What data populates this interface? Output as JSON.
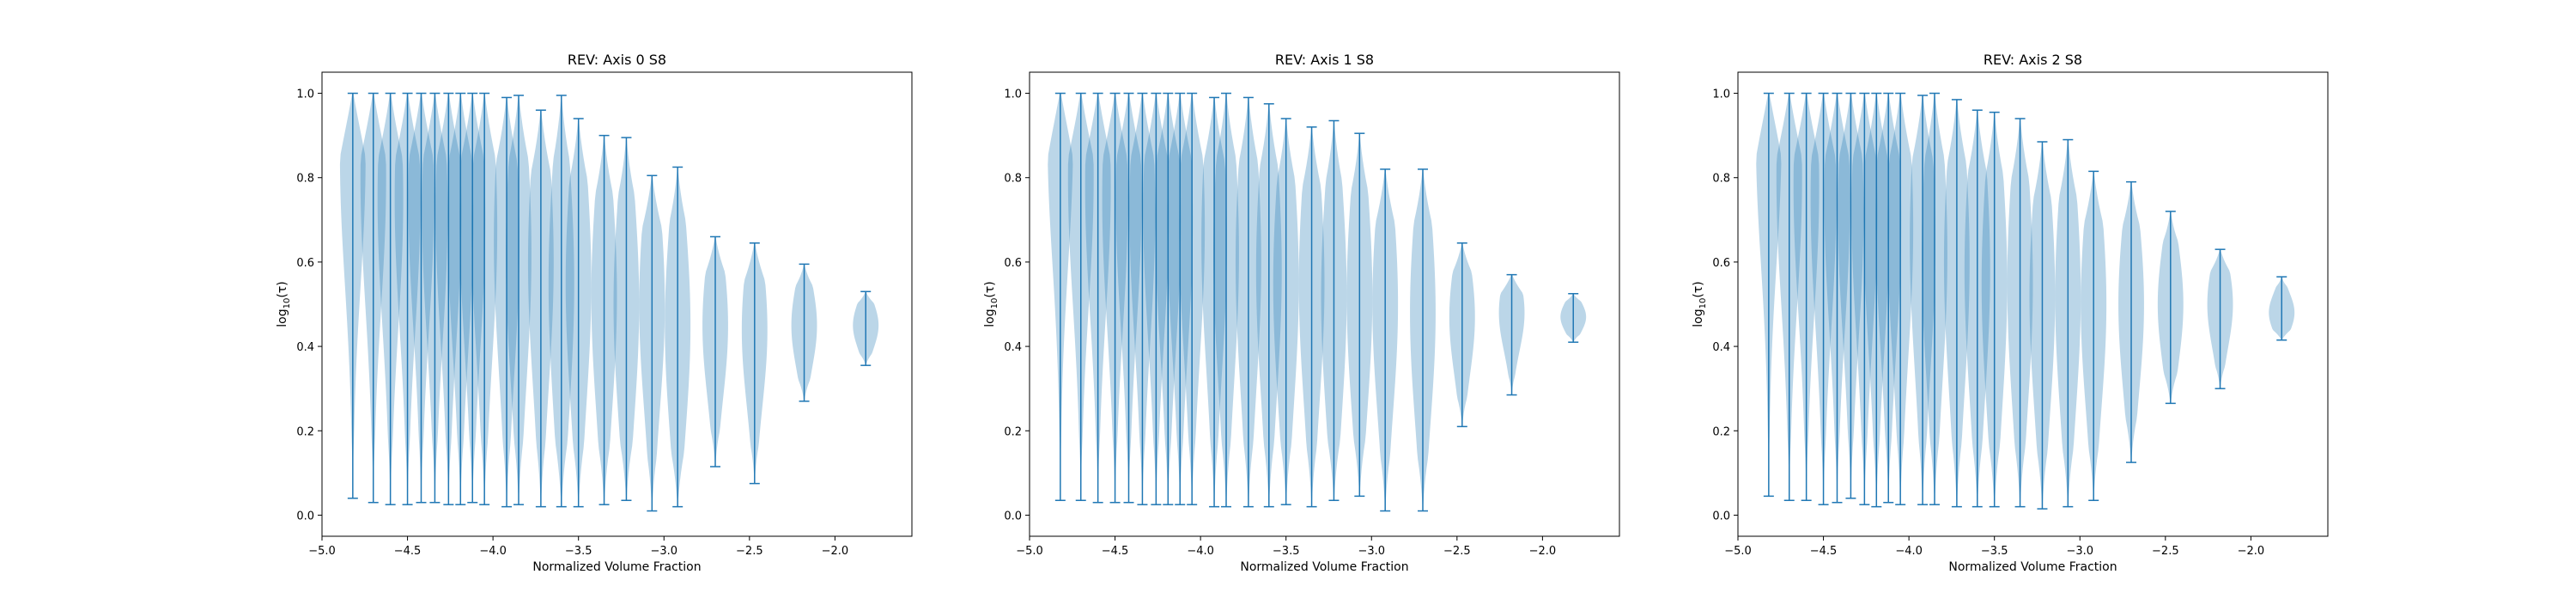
{
  "colors": {
    "violin_fill": "#1f77b4",
    "violin_fill_opacity": 0.3,
    "violin_line": "#1f77b4",
    "axis": "#000000"
  },
  "chart_data": [
    {
      "type": "violin",
      "title": "REV: Axis 0 S8",
      "xlabel": "Normalized Volume Fraction",
      "ylabel": "log10(τ)",
      "ylabel_parts": {
        "base": "log",
        "sub": "10",
        "arg": "(τ)"
      },
      "xlim": [
        -5.0,
        -1.55
      ],
      "ylim": [
        -0.05,
        1.05
      ],
      "xticks": [
        -5.0,
        -4.5,
        -4.0,
        -3.5,
        -3.0,
        -2.5,
        -2.0
      ],
      "xtick_labels": [
        "−5.0",
        "−4.5",
        "−4.0",
        "−3.5",
        "−3.0",
        "−2.5",
        "−2.0"
      ],
      "yticks": [
        0.0,
        0.2,
        0.4,
        0.6,
        0.8,
        1.0
      ],
      "ytick_labels": [
        "0.0",
        "0.2",
        "0.4",
        "0.6",
        "0.8",
        "1.0"
      ],
      "grid": false,
      "violins": [
        {
          "x": -4.82,
          "min": 0.04,
          "max": 1.0,
          "center": 0.85,
          "hw": 0.075
        },
        {
          "x": -4.7,
          "min": 0.03,
          "max": 1.0,
          "center": 0.8,
          "hw": 0.075
        },
        {
          "x": -4.6,
          "min": 0.025,
          "max": 1.0,
          "center": 0.75,
          "hw": 0.075
        },
        {
          "x": -4.5,
          "min": 0.025,
          "max": 1.0,
          "center": 0.75,
          "hw": 0.075
        },
        {
          "x": -4.42,
          "min": 0.03,
          "max": 1.0,
          "center": 0.75,
          "hw": 0.075
        },
        {
          "x": -4.34,
          "min": 0.03,
          "max": 1.0,
          "center": 0.72,
          "hw": 0.075
        },
        {
          "x": -4.26,
          "min": 0.025,
          "max": 1.0,
          "center": 0.72,
          "hw": 0.075
        },
        {
          "x": -4.19,
          "min": 0.025,
          "max": 1.0,
          "center": 0.7,
          "hw": 0.075
        },
        {
          "x": -4.12,
          "min": 0.03,
          "max": 1.0,
          "center": 0.7,
          "hw": 0.075
        },
        {
          "x": -4.05,
          "min": 0.025,
          "max": 1.0,
          "center": 0.68,
          "hw": 0.075
        },
        {
          "x": -3.92,
          "min": 0.02,
          "max": 0.99,
          "center": 0.65,
          "hw": 0.075
        },
        {
          "x": -3.85,
          "min": 0.025,
          "max": 0.995,
          "center": 0.62,
          "hw": 0.075
        },
        {
          "x": -3.72,
          "min": 0.02,
          "max": 0.96,
          "center": 0.6,
          "hw": 0.075
        },
        {
          "x": -3.6,
          "min": 0.02,
          "max": 0.995,
          "center": 0.55,
          "hw": 0.075
        },
        {
          "x": -3.5,
          "min": 0.02,
          "max": 0.94,
          "center": 0.55,
          "hw": 0.075
        },
        {
          "x": -3.35,
          "min": 0.025,
          "max": 0.9,
          "center": 0.52,
          "hw": 0.075
        },
        {
          "x": -3.22,
          "min": 0.035,
          "max": 0.895,
          "center": 0.5,
          "hw": 0.075
        },
        {
          "x": -3.07,
          "min": 0.01,
          "max": 0.805,
          "center": 0.5,
          "hw": 0.075
        },
        {
          "x": -2.92,
          "min": 0.02,
          "max": 0.825,
          "center": 0.45,
          "hw": 0.075
        },
        {
          "x": -2.7,
          "min": 0.115,
          "max": 0.66,
          "center": 0.45,
          "hw": 0.075
        },
        {
          "x": -2.47,
          "min": 0.075,
          "max": 0.645,
          "center": 0.44,
          "hw": 0.075
        },
        {
          "x": -2.18,
          "min": 0.27,
          "max": 0.595,
          "center": 0.45,
          "hw": 0.075
        },
        {
          "x": -1.82,
          "min": 0.355,
          "max": 0.53,
          "center": 0.45,
          "hw": 0.075
        }
      ]
    },
    {
      "type": "violin",
      "title": "REV: Axis 1 S8",
      "xlabel": "Normalized Volume Fraction",
      "ylabel": "log10(τ)",
      "ylabel_parts": {
        "base": "log",
        "sub": "10",
        "arg": "(τ)"
      },
      "xlim": [
        -5.0,
        -1.55
      ],
      "ylim": [
        -0.05,
        1.05
      ],
      "xticks": [
        -5.0,
        -4.5,
        -4.0,
        -3.5,
        -3.0,
        -2.5,
        -2.0
      ],
      "xtick_labels": [
        "−5.0",
        "−4.5",
        "−4.0",
        "−3.5",
        "−3.0",
        "−2.5",
        "−2.0"
      ],
      "yticks": [
        0.0,
        0.2,
        0.4,
        0.6,
        0.8,
        1.0
      ],
      "ytick_labels": [
        "0.0",
        "0.2",
        "0.4",
        "0.6",
        "0.8",
        "1.0"
      ],
      "grid": false,
      "violins": [
        {
          "x": -4.82,
          "min": 0.035,
          "max": 1.0,
          "center": 0.9,
          "hw": 0.075
        },
        {
          "x": -4.7,
          "min": 0.035,
          "max": 1.0,
          "center": 0.8,
          "hw": 0.075
        },
        {
          "x": -4.6,
          "min": 0.03,
          "max": 1.0,
          "center": 0.78,
          "hw": 0.075
        },
        {
          "x": -4.5,
          "min": 0.03,
          "max": 1.0,
          "center": 0.75,
          "hw": 0.075
        },
        {
          "x": -4.42,
          "min": 0.03,
          "max": 1.0,
          "center": 0.75,
          "hw": 0.075
        },
        {
          "x": -4.34,
          "min": 0.025,
          "max": 1.0,
          "center": 0.72,
          "hw": 0.075
        },
        {
          "x": -4.26,
          "min": 0.025,
          "max": 1.0,
          "center": 0.72,
          "hw": 0.075
        },
        {
          "x": -4.19,
          "min": 0.025,
          "max": 1.0,
          "center": 0.7,
          "hw": 0.075
        },
        {
          "x": -4.12,
          "min": 0.025,
          "max": 1.0,
          "center": 0.7,
          "hw": 0.075
        },
        {
          "x": -4.05,
          "min": 0.025,
          "max": 1.0,
          "center": 0.68,
          "hw": 0.075
        },
        {
          "x": -3.92,
          "min": 0.02,
          "max": 0.99,
          "center": 0.65,
          "hw": 0.075
        },
        {
          "x": -3.85,
          "min": 0.02,
          "max": 1.0,
          "center": 0.62,
          "hw": 0.075
        },
        {
          "x": -3.72,
          "min": 0.02,
          "max": 0.99,
          "center": 0.6,
          "hw": 0.075
        },
        {
          "x": -3.6,
          "min": 0.02,
          "max": 0.975,
          "center": 0.58,
          "hw": 0.075
        },
        {
          "x": -3.5,
          "min": 0.025,
          "max": 0.94,
          "center": 0.55,
          "hw": 0.075
        },
        {
          "x": -3.35,
          "min": 0.02,
          "max": 0.92,
          "center": 0.55,
          "hw": 0.075
        },
        {
          "x": -3.22,
          "min": 0.035,
          "max": 0.935,
          "center": 0.52,
          "hw": 0.075
        },
        {
          "x": -3.07,
          "min": 0.045,
          "max": 0.905,
          "center": 0.52,
          "hw": 0.075
        },
        {
          "x": -2.92,
          "min": 0.01,
          "max": 0.82,
          "center": 0.5,
          "hw": 0.075
        },
        {
          "x": -2.7,
          "min": 0.01,
          "max": 0.82,
          "center": 0.48,
          "hw": 0.075
        },
        {
          "x": -2.47,
          "min": 0.21,
          "max": 0.645,
          "center": 0.47,
          "hw": 0.075
        },
        {
          "x": -2.18,
          "min": 0.285,
          "max": 0.57,
          "center": 0.48,
          "hw": 0.075
        },
        {
          "x": -1.82,
          "min": 0.41,
          "max": 0.525,
          "center": 0.47,
          "hw": 0.075
        }
      ]
    },
    {
      "type": "violin",
      "title": "REV: Axis 2 S8",
      "xlabel": "Normalized Volume Fraction",
      "ylabel": "log10(τ)",
      "ylabel_parts": {
        "base": "log",
        "sub": "10",
        "arg": "(τ)"
      },
      "xlim": [
        -5.0,
        -1.55
      ],
      "ylim": [
        -0.05,
        1.05
      ],
      "xticks": [
        -5.0,
        -4.5,
        -4.0,
        -3.5,
        -3.0,
        -2.5,
        -2.0
      ],
      "xtick_labels": [
        "−5.0",
        "−4.5",
        "−4.0",
        "−3.5",
        "−3.0",
        "−2.5",
        "−2.0"
      ],
      "yticks": [
        0.0,
        0.2,
        0.4,
        0.6,
        0.8,
        1.0
      ],
      "ytick_labels": [
        "0.0",
        "0.2",
        "0.4",
        "0.6",
        "0.8",
        "1.0"
      ],
      "grid": false,
      "violins": [
        {
          "x": -4.82,
          "min": 0.045,
          "max": 1.0,
          "center": 0.9,
          "hw": 0.075
        },
        {
          "x": -4.7,
          "min": 0.035,
          "max": 1.0,
          "center": 0.8,
          "hw": 0.075
        },
        {
          "x": -4.6,
          "min": 0.035,
          "max": 1.0,
          "center": 0.78,
          "hw": 0.075
        },
        {
          "x": -4.5,
          "min": 0.025,
          "max": 1.0,
          "center": 0.75,
          "hw": 0.075
        },
        {
          "x": -4.42,
          "min": 0.03,
          "max": 1.0,
          "center": 0.75,
          "hw": 0.075
        },
        {
          "x": -4.34,
          "min": 0.04,
          "max": 1.0,
          "center": 0.72,
          "hw": 0.075
        },
        {
          "x": -4.26,
          "min": 0.025,
          "max": 1.0,
          "center": 0.72,
          "hw": 0.075
        },
        {
          "x": -4.19,
          "min": 0.02,
          "max": 1.0,
          "center": 0.7,
          "hw": 0.075
        },
        {
          "x": -4.12,
          "min": 0.03,
          "max": 1.0,
          "center": 0.7,
          "hw": 0.075
        },
        {
          "x": -4.05,
          "min": 0.025,
          "max": 1.0,
          "center": 0.68,
          "hw": 0.075
        },
        {
          "x": -3.92,
          "min": 0.025,
          "max": 0.995,
          "center": 0.65,
          "hw": 0.075
        },
        {
          "x": -3.85,
          "min": 0.025,
          "max": 1.0,
          "center": 0.62,
          "hw": 0.075
        },
        {
          "x": -3.72,
          "min": 0.02,
          "max": 0.985,
          "center": 0.6,
          "hw": 0.075
        },
        {
          "x": -3.6,
          "min": 0.02,
          "max": 0.96,
          "center": 0.58,
          "hw": 0.075
        },
        {
          "x": -3.5,
          "min": 0.02,
          "max": 0.955,
          "center": 0.55,
          "hw": 0.075
        },
        {
          "x": -3.35,
          "min": 0.02,
          "max": 0.94,
          "center": 0.55,
          "hw": 0.075
        },
        {
          "x": -3.22,
          "min": 0.015,
          "max": 0.885,
          "center": 0.52,
          "hw": 0.075
        },
        {
          "x": -3.07,
          "min": 0.02,
          "max": 0.89,
          "center": 0.52,
          "hw": 0.075
        },
        {
          "x": -2.92,
          "min": 0.035,
          "max": 0.815,
          "center": 0.5,
          "hw": 0.075
        },
        {
          "x": -2.7,
          "min": 0.125,
          "max": 0.79,
          "center": 0.5,
          "hw": 0.075
        },
        {
          "x": -2.47,
          "min": 0.265,
          "max": 0.72,
          "center": 0.5,
          "hw": 0.075
        },
        {
          "x": -2.18,
          "min": 0.3,
          "max": 0.63,
          "center": 0.5,
          "hw": 0.075
        },
        {
          "x": -1.82,
          "min": 0.415,
          "max": 0.565,
          "center": 0.48,
          "hw": 0.075
        }
      ]
    }
  ]
}
